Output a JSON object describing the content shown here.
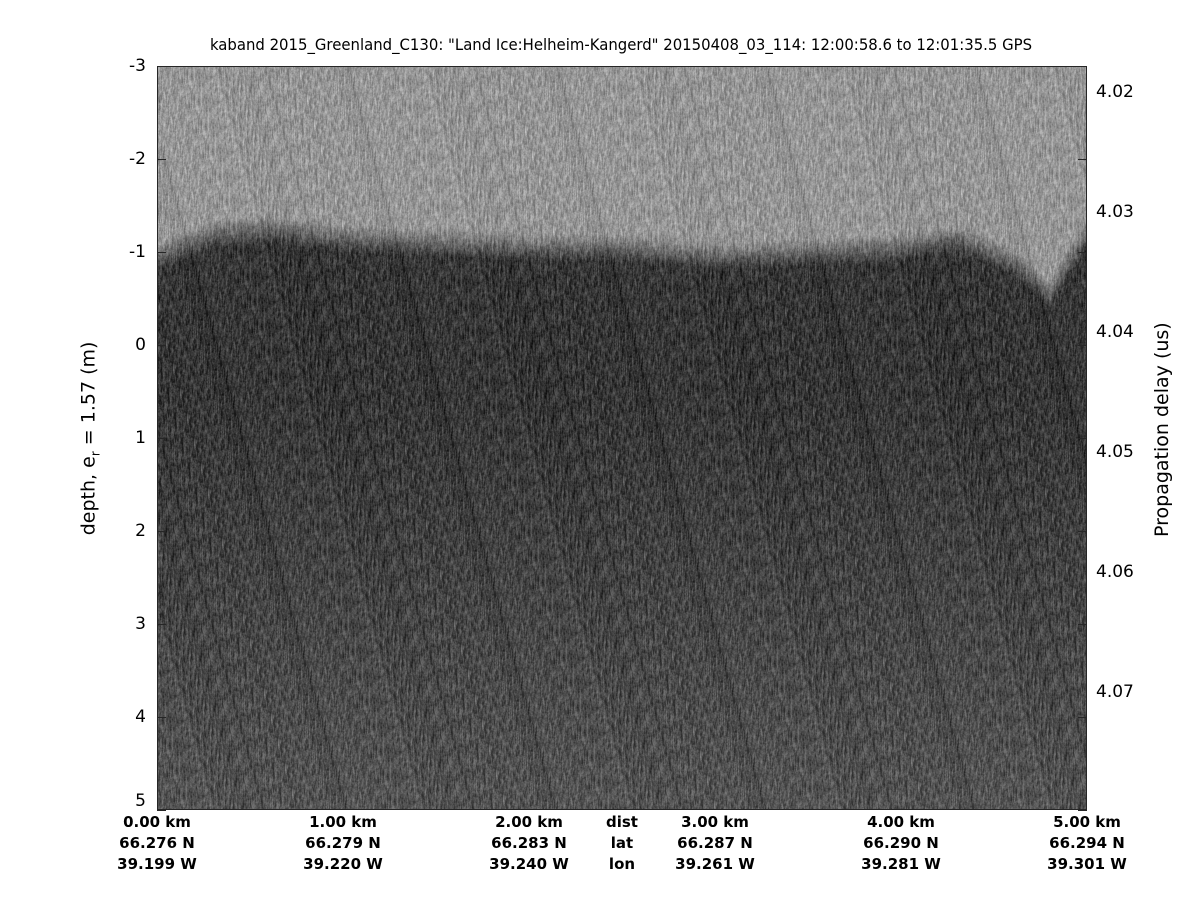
{
  "chart_data": {
    "type": "heatmap",
    "title": "kaband 2015_Greenland_C130: \"Land Ice:Helheim-Kangerd\"  20150408_03_114: 12:00:58.6 to 12:01:35.5 GPS",
    "ylabel_left": "depth, e",
    "ylabel_left_sub": "r",
    "ylabel_left_suffix": " = 1.57 (m)",
    "ylabel_right": "Propagation delay (us)",
    "ylim_left": [
      -3,
      5
    ],
    "left_ticks": [
      "-3",
      "-2",
      "-1",
      "0",
      "1",
      "2",
      "3",
      "4",
      "5"
    ],
    "left_tick_values": [
      -3,
      -2,
      -1,
      0,
      1,
      2,
      3,
      4,
      5
    ],
    "right_ticks": [
      "4.02",
      "4.03",
      "4.04",
      "4.05",
      "4.06",
      "4.07"
    ],
    "right_tick_values": [
      4.02,
      4.03,
      4.04,
      4.05,
      4.06,
      4.07
    ],
    "right_ylim": [
      4.0178,
      4.0798
    ],
    "xlim_km": [
      0,
      5
    ],
    "colormap": "gray",
    "x_row_labels": [
      "dist",
      "lat",
      "lon"
    ],
    "x_ticks": [
      {
        "dist": "0.00 km",
        "lat": "66.276 N",
        "lon": "39.199 W"
      },
      {
        "dist": "1.00 km",
        "lat": "66.279 N",
        "lon": "39.220 W"
      },
      {
        "dist": "2.00 km",
        "lat": "66.283 N",
        "lon": "39.240 W"
      },
      {
        "dist": "3.00 km",
        "lat": "66.287 N",
        "lon": "39.261 W"
      },
      {
        "dist": "4.00 km",
        "lat": "66.290 N",
        "lon": "39.281 W"
      },
      {
        "dist": "5.00 km",
        "lat": "66.294 N",
        "lon": "39.301 W"
      }
    ],
    "surface_profile": {
      "dist_km": [
        0,
        0.3,
        0.6,
        1.0,
        1.5,
        2.0,
        2.5,
        3.0,
        3.5,
        4.0,
        4.3,
        4.6,
        4.8,
        4.9,
        5.0
      ],
      "depth_m": [
        -0.95,
        -1.2,
        -1.25,
        -1.15,
        -1.1,
        -1.05,
        -1.05,
        -0.95,
        -1.0,
        -1.05,
        -1.15,
        -0.9,
        -0.55,
        -0.9,
        -1.2
      ]
    }
  }
}
